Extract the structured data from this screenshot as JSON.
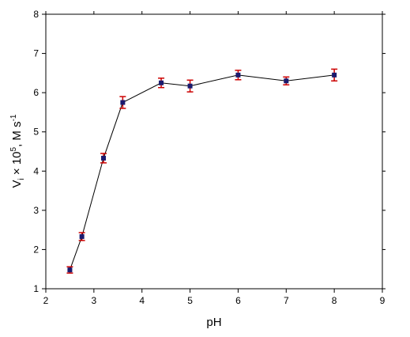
{
  "chart_data": {
    "type": "line",
    "xlabel": "pH",
    "ylabel": [
      {
        "text": "V",
        "shift": "base"
      },
      {
        "text": "i",
        "shift": "sub"
      },
      {
        "text": " × 10",
        "shift": "base"
      },
      {
        "text": "5",
        "shift": "super"
      },
      {
        "text": ", M s",
        "shift": "base"
      },
      {
        "text": "-1",
        "shift": "super"
      }
    ],
    "x": [
      2.5,
      2.75,
      3.2,
      3.6,
      4.4,
      5,
      6,
      7,
      8
    ],
    "values": [
      1.48,
      2.33,
      4.33,
      5.75,
      6.25,
      6.17,
      6.45,
      6.3,
      6.45
    ],
    "errors": [
      0.08,
      0.1,
      0.12,
      0.15,
      0.12,
      0.15,
      0.12,
      0.1,
      0.15
    ],
    "color": "#000000",
    "marker_color": "#1a1a6e",
    "error_color": "#cc0000",
    "xlim": [
      2,
      9
    ],
    "xticks": [
      2,
      3,
      4,
      5,
      6,
      7,
      8,
      9
    ],
    "ylim": [
      1,
      8
    ],
    "yticks": [
      1,
      2,
      3,
      4,
      5,
      6,
      7,
      8
    ]
  }
}
